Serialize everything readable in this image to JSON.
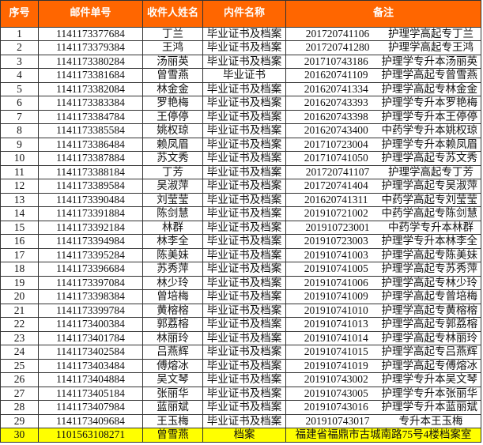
{
  "colors": {
    "header_bg": "#FF6600",
    "header_text": "#FFFFFF",
    "highlight_row": "#FFFF00"
  },
  "headers": [
    "序号",
    "邮件单号",
    "收件人姓名",
    "内件名称",
    "备注"
  ],
  "rows": [
    {
      "no": "1",
      "tracking": "1141173377684",
      "name": "丁兰",
      "item": "毕业证书及档案",
      "id": "201720741106",
      "note": "护理学高起专丁兰"
    },
    {
      "no": "2",
      "tracking": "1141173379384",
      "name": "王鸿",
      "item": "毕业证书及档案",
      "id": "201720741280",
      "note": "护理学高起专王鸿"
    },
    {
      "no": "3",
      "tracking": "1141173380284",
      "name": "汤丽英",
      "item": "毕业证书及档案",
      "id": "201710743186",
      "note": "护理学专升本汤丽英"
    },
    {
      "no": "4",
      "tracking": "1141173381684",
      "name": "曾雪燕",
      "item": "毕业证书",
      "id": "201620741109",
      "note": "护理学高起专曾雪燕"
    },
    {
      "no": "5",
      "tracking": "1141173382084",
      "name": "林金金",
      "item": "毕业证书及档案",
      "id": "201620741334",
      "note": "护理学高起专林金金"
    },
    {
      "no": "6",
      "tracking": "1141173383384",
      "name": "罗艳梅",
      "item": "毕业证书及档案",
      "id": "201620743393",
      "note": "护理学专升本罗艳梅"
    },
    {
      "no": "7",
      "tracking": "1141173384784",
      "name": "王停停",
      "item": "毕业证书及档案",
      "id": "201620743398",
      "note": "护理学专升本王停停"
    },
    {
      "no": "8",
      "tracking": "1141173385584",
      "name": "姚权琼",
      "item": "毕业证书及档案",
      "id": "201620743400",
      "note": "中药学专升本姚权琼"
    },
    {
      "no": "9",
      "tracking": "1141173386484",
      "name": "赖凤眉",
      "item": "毕业证书及档案",
      "id": "201710723004",
      "note": "护理学专升本赖凤眉"
    },
    {
      "no": "10",
      "tracking": "1141173387884",
      "name": "苏文秀",
      "item": "毕业证书及档案",
      "id": "201710741050",
      "note": "护理学高起专苏文秀"
    },
    {
      "no": "11",
      "tracking": "1141173388184",
      "name": "丁芳",
      "item": "毕业证书及档案",
      "id": "201720741107",
      "note": "护理学高起专丁芳"
    },
    {
      "no": "12",
      "tracking": "1141173389584",
      "name": "吴淑萍",
      "item": "毕业证书及档案",
      "id": "201720741404",
      "note": "护理学高起专吴淑萍"
    },
    {
      "no": "13",
      "tracking": "1141173390484",
      "name": "刘莹莹",
      "item": "毕业证书及档案",
      "id": "201620741311",
      "note": "中药学高起专刘莹莹"
    },
    {
      "no": "14",
      "tracking": "1141173391884",
      "name": "陈剑慧",
      "item": "毕业证书及档案",
      "id": "201910721002",
      "note": "中药学高起专陈剑慧"
    },
    {
      "no": "15",
      "tracking": "1141173392184",
      "name": "林群",
      "item": "毕业证书及档案",
      "id": "201910723001",
      "note": "中药学专升本林群"
    },
    {
      "no": "16",
      "tracking": "1141173394984",
      "name": "林李全",
      "item": "毕业证书及档案",
      "id": "201910723003",
      "note": "护理学专升本林李全"
    },
    {
      "no": "17",
      "tracking": "1141173395284",
      "name": "陈美妹",
      "item": "毕业证书及档案",
      "id": "201910741003",
      "note": "护理学高起专陈美妹"
    },
    {
      "no": "18",
      "tracking": "1141173396684",
      "name": "苏秀萍",
      "item": "毕业证书及档案",
      "id": "201910741005",
      "note": "护理学高起专苏秀萍"
    },
    {
      "no": "19",
      "tracking": "1141173397084",
      "name": "林少玲",
      "item": "毕业证书及档案",
      "id": "201910741006",
      "note": "护理学高起专林少玲"
    },
    {
      "no": "20",
      "tracking": "1141173398384",
      "name": "曾培梅",
      "item": "毕业证书及档案",
      "id": "201910741009",
      "note": "护理学高起专曾培梅"
    },
    {
      "no": "21",
      "tracking": "1141173399784",
      "name": "黄榕榕",
      "item": "毕业证书及档案",
      "id": "201910741010",
      "note": "护理学高起专黄榕榕"
    },
    {
      "no": "22",
      "tracking": "1141173400384",
      "name": "郭荔榕",
      "item": "毕业证书及档案",
      "id": "201910741013",
      "note": "护理学高起专郭荔榕"
    },
    {
      "no": "23",
      "tracking": "1141173401784",
      "name": "林丽玲",
      "item": "毕业证书及档案",
      "id": "201910741014",
      "note": "护理学高起专林丽玲"
    },
    {
      "no": "24",
      "tracking": "1141173402584",
      "name": "吕燕辉",
      "item": "毕业证书及档案",
      "id": "201910741015",
      "note": "护理学高起专吕燕辉"
    },
    {
      "no": "25",
      "tracking": "1141173403484",
      "name": "傅熔冰",
      "item": "毕业证书及档案",
      "id": "201910741019",
      "note": "护理学高起专傅熔冰"
    },
    {
      "no": "26",
      "tracking": "1141173404884",
      "name": "吴文琴",
      "item": "毕业证书及档案",
      "id": "201910743002",
      "note": "护理学专升本吴文琴"
    },
    {
      "no": "27",
      "tracking": "1141173405184",
      "name": "张丽华",
      "item": "毕业证书及档案",
      "id": "201910743005",
      "note": "护理学专升本张丽华"
    },
    {
      "no": "28",
      "tracking": "1141173407984",
      "name": "蓝丽斌",
      "item": "毕业证书及档案",
      "id": "201910743016",
      "note": "护理学专升本蓝丽斌"
    },
    {
      "no": "29",
      "tracking": "1141173409684",
      "name": "王玉梅",
      "item": "毕业证书及档案",
      "id": "201910743017",
      "note": "专升本王玉梅"
    }
  ],
  "highlight_row": {
    "no": "30",
    "tracking": "1101563108271",
    "name": "曾雪燕",
    "item": "档案",
    "note": "福建省福鼎市古城南路75号4楼档案室"
  }
}
